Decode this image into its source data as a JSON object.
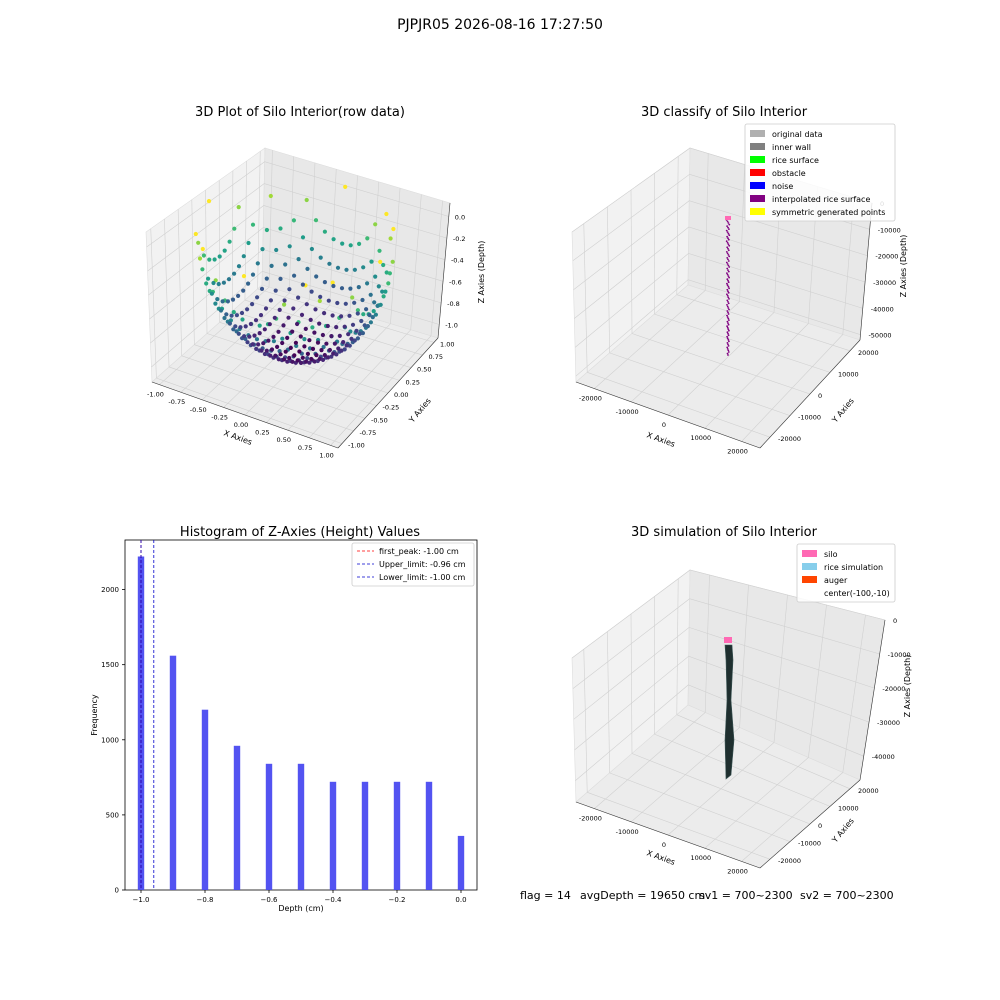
{
  "suptitle": "PJPJR05 2026-08-16 17:27:50",
  "footer": {
    "flag": "flag = 14",
    "avg_depth": "avgDepth = 19650 cm",
    "sv1": "sv1 = 700~2300",
    "sv2": "sv2 = 700~2300"
  },
  "colors": {
    "hist_bar": "#4a4af0",
    "first_peak": "#ff0000",
    "limits": "#0000cc",
    "pane": "#f2f2f2"
  },
  "chart_data": [
    {
      "type": "scatter",
      "title": "3D Plot of Silo Interior(row data)",
      "xlabel": "X Axies",
      "ylabel": "Y Axies",
      "zlabel": "Z Axies (Depth)",
      "xlim": [
        -1.0,
        1.0
      ],
      "ylim": [
        -1.0,
        1.0
      ],
      "zlim": [
        -1.0,
        0.0
      ],
      "x_ticks": [
        "-1.00",
        "-0.75",
        "-0.50",
        "-0.25",
        "0.00",
        "0.25",
        "0.50",
        "0.75",
        "1.00"
      ],
      "y_ticks": [
        "-1.00",
        "-0.75",
        "-0.50",
        "-0.25",
        "0.00",
        "0.25",
        "0.50",
        "0.75",
        "1.00"
      ],
      "z_ticks": [
        "-1.0",
        "-0.8",
        "-0.6",
        "-0.4",
        "-0.2",
        "0.0"
      ],
      "surface": "hemisphere z = -sqrt(1 - x^2 - y^2), colored by depth (viridis)",
      "grid": true
    },
    {
      "type": "scatter",
      "title": "3D classify of Silo Interior",
      "xlabel": "X Axies",
      "ylabel": "Y Axies",
      "zlabel": "Z Axies (Depth)",
      "xlim": [
        -25000,
        25000
      ],
      "ylim": [
        -25000,
        25000
      ],
      "zlim": [
        -52000,
        0
      ],
      "x_ticks": [
        "-20000",
        "-10000",
        "0",
        "10000",
        "20000"
      ],
      "y_ticks": [
        "-20000",
        "-10000",
        "0",
        "10000",
        "20000"
      ],
      "z_ticks": [
        "-50000",
        "-40000",
        "-30000",
        "-20000",
        "-10000",
        "0"
      ],
      "legend": {
        "placement": "top-right",
        "entries": [
          {
            "label": "original data",
            "color": "#b0b0b0"
          },
          {
            "label": "inner wall",
            "color": "#808080"
          },
          {
            "label": "rice surface",
            "color": "#00ff00"
          },
          {
            "label": "obstacle",
            "color": "#ff0000"
          },
          {
            "label": "noise",
            "color": "#0000ff"
          },
          {
            "label": "interpolated rice surface",
            "color": "#800080"
          },
          {
            "label": "symmetric generated points",
            "color": "#ffff00"
          }
        ]
      },
      "column": {
        "x": 0,
        "y": 0,
        "z_top": 0,
        "z_bottom": -50000,
        "color": "#800080"
      },
      "grid": true
    },
    {
      "type": "bar",
      "title": "Histogram of Z-Axies (Height) Values",
      "xlabel": "Depth (cm)",
      "ylabel": "Frequency",
      "xlim": [
        -1.05,
        0.05
      ],
      "ylim": [
        0,
        2330
      ],
      "x_ticks": [
        -1.0,
        -0.8,
        -0.6,
        -0.4,
        -0.2,
        0.0
      ],
      "x_tick_labels": [
        "−1.0",
        "−0.8",
        "−0.6",
        "−0.4",
        "−0.2",
        "0.0"
      ],
      "y_ticks": [
        0,
        500,
        1000,
        1500,
        2000
      ],
      "bin_width": 0.02,
      "bins": [
        -1.0,
        -0.9,
        -0.8,
        -0.7,
        -0.6,
        -0.5,
        -0.4,
        -0.3,
        -0.2,
        -0.1,
        0.0
      ],
      "values": [
        2220,
        1560,
        1200,
        960,
        840,
        840,
        720,
        720,
        720,
        720,
        360
      ],
      "lines": [
        {
          "label": "first_peak: -1.00 cm",
          "x": -1.0,
          "color": "#ff0000"
        },
        {
          "label": "Upper_limit: -0.96 cm",
          "x": -0.96,
          "color": "#0000cc"
        },
        {
          "label": "Lower_limit: -1.00 cm",
          "x": -1.0,
          "color": "#0000cc"
        }
      ],
      "legend": {
        "placement": "top-right"
      }
    },
    {
      "type": "area",
      "title": "3D simulation of Silo Interior",
      "xlabel": "X Axies",
      "ylabel": "Y Axies",
      "zlabel": "Z Axies (Depth)",
      "xlim": [
        -25000,
        25000
      ],
      "ylim": [
        -25000,
        25000
      ],
      "zlim": [
        -47000,
        0
      ],
      "x_ticks": [
        "-20000",
        "-10000",
        "0",
        "10000",
        "20000"
      ],
      "y_ticks": [
        "-20000",
        "-10000",
        "0",
        "10000",
        "20000"
      ],
      "z_ticks": [
        "-40000",
        "-30000",
        "-20000",
        "-10000",
        "0"
      ],
      "legend": {
        "placement": "top-right",
        "entries": [
          {
            "label": "silo",
            "color": "#ff69b4"
          },
          {
            "label": "rice simulation",
            "color": "#87ceeb"
          },
          {
            "label": "auger",
            "color": "#ff4500"
          },
          {
            "label": "center(-100,-10)",
            "color": ""
          }
        ]
      },
      "column": {
        "x": -100,
        "y": -10,
        "z_top": 0,
        "z_bottom": -47000,
        "color": "#1f2f2f"
      },
      "grid": true
    }
  ]
}
